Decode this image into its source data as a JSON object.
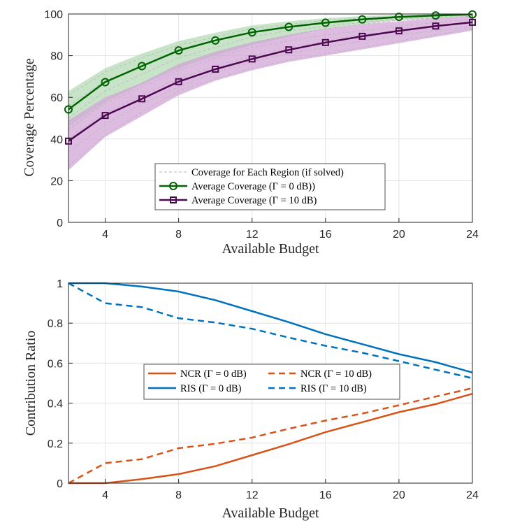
{
  "charts": [
    {
      "type": "line",
      "xlabel": "Available Budget",
      "ylabel": "Coverage Percentage",
      "xlim": [
        2,
        24
      ],
      "ylim": [
        0,
        100
      ],
      "xticks": [
        4,
        8,
        12,
        16,
        20,
        24
      ],
      "yticks": [
        0,
        20,
        40,
        60,
        80,
        100
      ],
      "grid": true,
      "legend": {
        "position": "lower-center",
        "entries": [
          "Coverage for Each Region (if solved)",
          "Average Coverage (Γ = 0 dB))",
          "Average Coverage (Γ = 10 dB)"
        ]
      },
      "x": [
        2,
        4,
        6,
        8,
        10,
        12,
        14,
        16,
        18,
        20,
        22,
        24
      ],
      "bands": [
        {
          "color": "#b5dbb5",
          "lower": [
            46,
            58,
            66,
            74,
            80,
            85,
            89,
            93,
            95,
            97,
            98,
            99
          ],
          "upper": [
            63,
            74,
            81,
            87,
            91,
            94.5,
            96.5,
            98,
            99,
            99.5,
            99.8,
            100
          ]
        },
        {
          "color": "#d3a6d8",
          "lower": [
            25,
            41,
            51,
            61,
            68,
            73,
            77,
            80,
            83,
            86,
            89,
            92
          ],
          "upper": [
            49,
            60,
            67,
            76,
            82,
            86.5,
            90,
            93,
            95,
            96.5,
            98,
            99
          ]
        }
      ],
      "region_lines": [
        [
          44,
          58,
          67,
          75,
          81,
          86,
          90,
          93,
          95,
          97,
          98,
          99
        ],
        [
          50,
          63,
          71,
          79,
          84,
          89,
          92,
          94,
          96,
          97.5,
          98.5,
          99.5
        ],
        [
          56,
          68,
          75,
          82,
          87,
          91,
          94,
          96,
          97,
          98,
          99,
          99.5
        ],
        [
          61,
          72,
          79,
          85,
          89,
          93,
          95,
          97,
          98,
          99,
          99.5,
          100
        ],
        [
          27,
          42,
          53,
          63,
          69,
          74,
          78,
          81,
          84,
          87,
          90,
          93
        ],
        [
          34,
          47,
          57,
          65,
          72,
          77,
          81,
          84,
          87,
          90,
          92,
          94
        ],
        [
          40,
          53,
          61,
          69,
          75,
          80,
          84,
          87,
          90,
          92,
          94,
          96
        ],
        [
          45,
          57,
          65,
          73,
          79,
          84,
          87,
          90,
          92,
          94,
          96,
          97.5
        ]
      ],
      "series": [
        {
          "name": "Average Coverage (Γ = 0 dB))",
          "color": "#006400",
          "marker": "circle",
          "values": [
            54.2,
            67.3,
            75,
            82.5,
            87.3,
            91.2,
            93.8,
            95.8,
            97.4,
            98.6,
            99.3,
            99.8
          ]
        },
        {
          "name": "Average Coverage (Γ = 10 dB)",
          "color": "#4b0a4f",
          "marker": "square",
          "values": [
            39,
            51.3,
            59.3,
            67.5,
            73.5,
            78.4,
            82.8,
            86.3,
            89.3,
            91.9,
            94.2,
            96
          ]
        }
      ]
    },
    {
      "type": "line",
      "xlabel": "Available Budget",
      "ylabel": "Contribution Ratio",
      "xlim": [
        2,
        24
      ],
      "ylim": [
        0,
        1
      ],
      "xticks": [
        4,
        8,
        12,
        16,
        20,
        24
      ],
      "yticks": [
        0,
        0.2,
        0.4,
        0.6,
        0.8,
        1
      ],
      "ytick_labels": [
        "0",
        "0.2",
        "0.4",
        "0.6",
        "0.8",
        "1"
      ],
      "grid": true,
      "legend": {
        "position": "center",
        "entries": [
          "NCR (Γ = 0 dB)",
          "NCR (Γ = 10 dB)",
          "RIS (Γ = 0 dB)",
          "RIS (Γ = 10 dB)"
        ]
      },
      "x": [
        2,
        4,
        6,
        8,
        10,
        12,
        14,
        16,
        18,
        20,
        22,
        24
      ],
      "series": [
        {
          "name": "NCR (Γ = 0 dB)",
          "color": "#d95319",
          "dash": false,
          "values": [
            0,
            0,
            0.02,
            0.045,
            0.085,
            0.14,
            0.195,
            0.255,
            0.305,
            0.355,
            0.395,
            0.447
          ]
        },
        {
          "name": "NCR (Γ = 10 dB)",
          "color": "#d95319",
          "dash": true,
          "values": [
            0,
            0.1,
            0.12,
            0.175,
            0.197,
            0.228,
            0.272,
            0.313,
            0.348,
            0.39,
            0.433,
            0.475
          ]
        },
        {
          "name": "RIS (Γ = 0 dB)",
          "color": "#0072bd",
          "dash": false,
          "values": [
            1,
            1,
            0.983,
            0.958,
            0.915,
            0.86,
            0.805,
            0.745,
            0.695,
            0.645,
            0.605,
            0.553
          ]
        },
        {
          "name": "RIS (Γ = 10 dB)",
          "color": "#0072bd",
          "dash": true,
          "values": [
            1,
            0.9,
            0.88,
            0.825,
            0.803,
            0.772,
            0.728,
            0.687,
            0.652,
            0.61,
            0.567,
            0.525
          ]
        }
      ]
    }
  ]
}
